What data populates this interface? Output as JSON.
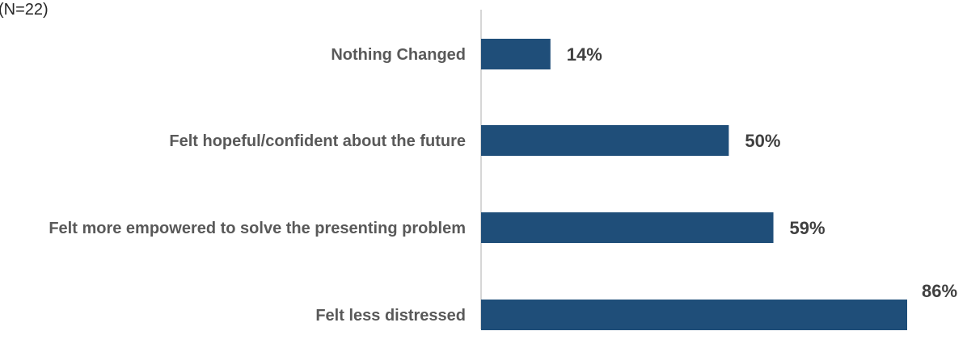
{
  "chart_data": {
    "type": "bar",
    "orientation": "horizontal",
    "corner_text": "(N=22)",
    "categories": [
      "Nothing Changed",
      "Felt hopeful/confident about the future",
      "Felt more empowered to solve the presenting problem",
      "Felt less distressed"
    ],
    "values": [
      14,
      50,
      59,
      86
    ],
    "value_labels": [
      "14%",
      "50%",
      "59%",
      "86%"
    ],
    "bar_color": "#1F4E79",
    "axis_color": "#BFBFBF",
    "grid": false,
    "legend": "none"
  }
}
